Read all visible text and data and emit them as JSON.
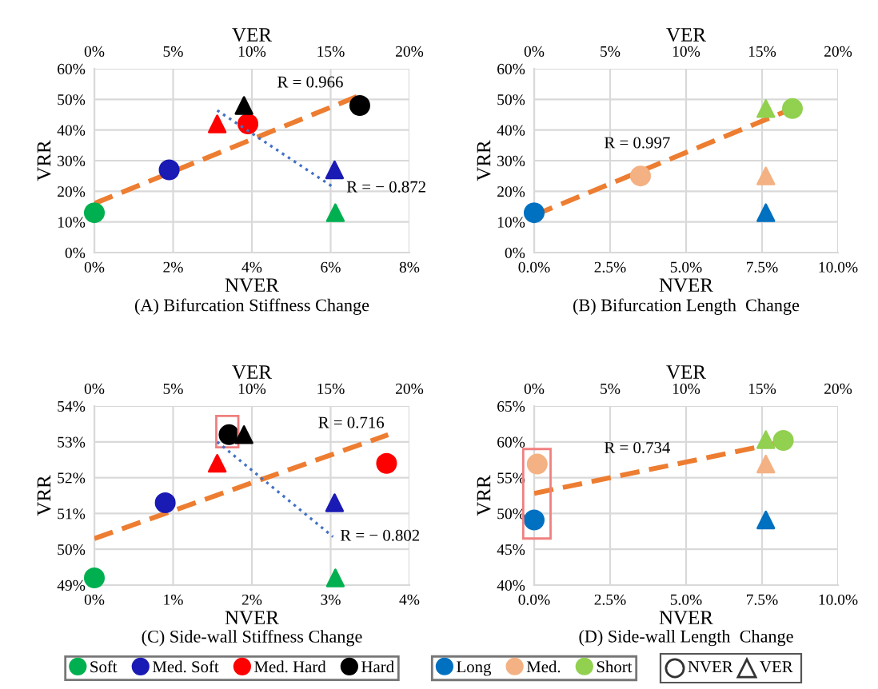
{
  "chart_data": [
    {
      "type": "scatter",
      "title": "(A) Bifurcation Stiffness Change",
      "xlabel": "NVER",
      "x2label": "VER",
      "ylabel": "VRR",
      "grid": true,
      "legend": false,
      "marker": "circle",
      "xlim": [
        0,
        8
      ],
      "xticks": [
        {
          "value": 0,
          "label": "0%"
        },
        {
          "value": 2,
          "label": "2%"
        },
        {
          "value": 4,
          "label": "4%"
        },
        {
          "value": 6,
          "label": "6%"
        },
        {
          "value": 8,
          "label": "8%"
        }
      ],
      "x2lim": [
        0,
        20
      ],
      "x2ticks": [
        {
          "value": 0,
          "label": "0%"
        },
        {
          "value": 5,
          "label": "5%"
        },
        {
          "value": 10,
          "label": "10%"
        },
        {
          "value": 15,
          "label": "15%"
        },
        {
          "value": 20,
          "label": "20%"
        }
      ],
      "ylim": [
        0,
        60
      ],
      "yticks": [
        {
          "value": 0,
          "label": "0%"
        },
        {
          "value": 10,
          "label": "10%"
        },
        {
          "value": 20,
          "label": "20%"
        },
        {
          "value": 30,
          "label": "30%"
        },
        {
          "value": 40,
          "label": "40%"
        },
        {
          "value": 50,
          "label": "50%"
        },
        {
          "value": 60,
          "label": "60%"
        }
      ],
      "series": [
        {
          "type": "line",
          "color": "#ed7d31",
          "line_style": "dashed",
          "marker": "none",
          "x": [
            0,
            6.74
          ],
          "values": [
            16,
            51.3
          ]
        },
        {
          "type": "line",
          "axis": "x2",
          "color": "#4472c4",
          "line_style": "dotted",
          "marker": "none",
          "x": [
            7.8,
            15.15
          ],
          "values": [
            46.4,
            21.4
          ]
        },
        {
          "color": "#00b050",
          "x": [
            0
          ],
          "values": [
            13
          ]
        },
        {
          "color": "#1a1ab4",
          "x": [
            1.9
          ],
          "values": [
            27
          ]
        },
        {
          "color": "#ff0000",
          "x": [
            3.9
          ],
          "values": [
            42
          ]
        },
        {
          "color": "#000000",
          "x": [
            6.74
          ],
          "values": [
            48
          ]
        },
        {
          "axis": "x2",
          "marker": "triangle",
          "color": "#00b050",
          "x": [
            15.3
          ],
          "values": [
            13
          ]
        },
        {
          "axis": "x2",
          "marker": "triangle",
          "color": "#1a1ab4",
          "x": [
            15.25
          ],
          "values": [
            27
          ]
        },
        {
          "axis": "x2",
          "marker": "triangle",
          "color": "#ff0000",
          "x": [
            7.8
          ],
          "values": [
            42
          ]
        },
        {
          "axis": "x2",
          "marker": "triangle",
          "color": "#000000",
          "x": [
            9.5
          ],
          "values": [
            48
          ]
        }
      ],
      "annotations": [
        "R = 0.966",
        "R = − 0.872"
      ]
    },
    {
      "type": "scatter",
      "title": "(B) Bifurcation Length  Change",
      "xlabel": "NVER",
      "x2label": "VER",
      "ylabel": "VRR",
      "grid": true,
      "legend": false,
      "marker": "circle",
      "xlim": [
        0,
        10
      ],
      "xticks": [
        {
          "value": 0,
          "label": "0.0%"
        },
        {
          "value": 2.5,
          "label": "2.5%"
        },
        {
          "value": 5,
          "label": "5.0%"
        },
        {
          "value": 7.5,
          "label": "7.5%"
        },
        {
          "value": 10,
          "label": "10.0%"
        }
      ],
      "x2lim": [
        0,
        20
      ],
      "x2ticks": [
        {
          "value": 0,
          "label": "0%"
        },
        {
          "value": 5,
          "label": "5%"
        },
        {
          "value": 10,
          "label": "10%"
        },
        {
          "value": 15,
          "label": "15%"
        },
        {
          "value": 20,
          "label": "20%"
        }
      ],
      "ylim": [
        0,
        60
      ],
      "yticks": [
        {
          "value": 0,
          "label": "0%"
        },
        {
          "value": 10,
          "label": "10%"
        },
        {
          "value": 20,
          "label": "20%"
        },
        {
          "value": 30,
          "label": "30%"
        },
        {
          "value": 40,
          "label": "40%"
        },
        {
          "value": 50,
          "label": "50%"
        },
        {
          "value": 60,
          "label": "60%"
        }
      ],
      "series": [
        {
          "type": "line",
          "color": "#ed7d31",
          "line_style": "dashed",
          "marker": "none",
          "x": [
            0,
            8.5
          ],
          "values": [
            12.2,
            47
          ]
        },
        {
          "color": "#0070c0",
          "x": [
            0
          ],
          "values": [
            13
          ]
        },
        {
          "color": "#f4b183",
          "x": [
            3.5
          ],
          "values": [
            25
          ]
        },
        {
          "color": "#92d050",
          "x": [
            8.5
          ],
          "values": [
            47
          ]
        },
        {
          "axis": "x2",
          "marker": "triangle",
          "color": "#0070c0",
          "x": [
            15.25
          ],
          "values": [
            13
          ]
        },
        {
          "axis": "x2",
          "marker": "triangle",
          "color": "#f4b183",
          "x": [
            15.25
          ],
          "values": [
            25
          ]
        },
        {
          "axis": "x2",
          "marker": "triangle",
          "color": "#92d050",
          "x": [
            15.25
          ],
          "values": [
            47
          ]
        }
      ],
      "annotations": [
        "R = 0.997"
      ]
    },
    {
      "type": "scatter",
      "title": "(C) Side-wall Stiffness Change",
      "xlabel": "NVER",
      "x2label": "VER",
      "ylabel": "VRR",
      "grid": true,
      "legend": "bottom",
      "marker": "circle",
      "xlim": [
        0,
        4
      ],
      "xticks": [
        {
          "value": 0,
          "label": "0%"
        },
        {
          "value": 1,
          "label": "1%"
        },
        {
          "value": 2,
          "label": "2%"
        },
        {
          "value": 3,
          "label": "3%"
        },
        {
          "value": 4,
          "label": "4%"
        }
      ],
      "x2lim": [
        0,
        20
      ],
      "x2ticks": [
        {
          "value": 0,
          "label": "0%"
        },
        {
          "value": 5,
          "label": "5%"
        },
        {
          "value": 10,
          "label": "10%"
        },
        {
          "value": 15,
          "label": "15%"
        },
        {
          "value": 20,
          "label": "20%"
        }
      ],
      "ylim": [
        49,
        54
      ],
      "yticks": [
        {
          "value": 49,
          "label": "49%"
        },
        {
          "value": 50,
          "label": "50%"
        },
        {
          "value": 51,
          "label": "51%"
        },
        {
          "value": 52,
          "label": "52%"
        },
        {
          "value": 53,
          "label": "53%"
        },
        {
          "value": 54,
          "label": "54%"
        }
      ],
      "series": [
        {
          "type": "line",
          "color": "#ed7d31",
          "line_style": "dashed",
          "marker": "none",
          "x": [
            0,
            3.73
          ],
          "values": [
            50.3,
            53.2
          ]
        },
        {
          "type": "line",
          "axis": "x2",
          "color": "#4472c4",
          "line_style": "dotted",
          "marker": "none",
          "x": [
            7.8,
            15.15
          ],
          "values": [
            53.0,
            50.35
          ]
        },
        {
          "name": "Soft",
          "color": "#00b050",
          "x": [
            0
          ],
          "values": [
            49.2
          ]
        },
        {
          "name": "Med. Soft",
          "color": "#1a1ab4",
          "x": [
            0.9
          ],
          "values": [
            51.3
          ]
        },
        {
          "name": "Med. Hard",
          "color": "#ff0000",
          "x": [
            3.71
          ],
          "values": [
            52.4
          ]
        },
        {
          "name": "Hard",
          "color": "#000000",
          "x": [
            1.71
          ],
          "values": [
            53.2
          ]
        },
        {
          "axis": "x2",
          "marker": "triangle",
          "color": "#00b050",
          "x": [
            15.3
          ],
          "values": [
            49.2
          ]
        },
        {
          "axis": "x2",
          "marker": "triangle",
          "color": "#1a1ab4",
          "x": [
            15.25
          ],
          "values": [
            51.3
          ]
        },
        {
          "axis": "x2",
          "marker": "triangle",
          "color": "#ff0000",
          "x": [
            7.8
          ],
          "values": [
            52.4
          ]
        },
        {
          "axis": "x2",
          "marker": "triangle",
          "color": "#000000",
          "x": [
            9.5
          ],
          "values": [
            53.2
          ]
        }
      ],
      "annotations": [
        "R = 0.716",
        "R = − 0.802"
      ]
    },
    {
      "type": "scatter",
      "title": "(D) Side-wall Length  Change",
      "xlabel": "NVER",
      "x2label": "VER",
      "ylabel": "VRR",
      "grid": true,
      "legend": "bottom",
      "marker": "circle",
      "xlim": [
        0,
        10
      ],
      "xticks": [
        {
          "value": 0,
          "label": "0.0%"
        },
        {
          "value": 2.5,
          "label": "2.5%"
        },
        {
          "value": 5,
          "label": "5.0%"
        },
        {
          "value": 7.5,
          "label": "7.5%"
        },
        {
          "value": 10,
          "label": "10.0%"
        }
      ],
      "x2lim": [
        0,
        20
      ],
      "x2ticks": [
        {
          "value": 0,
          "label": "0%"
        },
        {
          "value": 5,
          "label": "5%"
        },
        {
          "value": 10,
          "label": "10%"
        },
        {
          "value": 15,
          "label": "15%"
        },
        {
          "value": 20,
          "label": "20%"
        }
      ],
      "ylim": [
        40,
        65
      ],
      "yticks": [
        {
          "value": 40,
          "label": "40%"
        },
        {
          "value": 45,
          "label": "45%"
        },
        {
          "value": 50,
          "label": "50%"
        },
        {
          "value": 55,
          "label": "55%"
        },
        {
          "value": 60,
          "label": "60%"
        },
        {
          "value": 65,
          "label": "65%"
        }
      ],
      "series": [
        {
          "type": "line",
          "color": "#ed7d31",
          "line_style": "dashed",
          "marker": "none",
          "x": [
            0,
            8.2
          ],
          "values": [
            52.8,
            60
          ]
        },
        {
          "name": "Long",
          "color": "#0070c0",
          "x": [
            0
          ],
          "values": [
            49.1
          ]
        },
        {
          "name": "Med.",
          "color": "#f4b183",
          "x": [
            0.1
          ],
          "values": [
            56.9
          ]
        },
        {
          "name": "Short",
          "color": "#92d050",
          "x": [
            8.2
          ],
          "values": [
            60.2
          ]
        },
        {
          "axis": "x2",
          "marker": "triangle",
          "color": "#0070c0",
          "x": [
            15.25
          ],
          "values": [
            49.1
          ]
        },
        {
          "axis": "x2",
          "marker": "triangle",
          "color": "#f4b183",
          "x": [
            15.25
          ],
          "values": [
            56.9
          ]
        },
        {
          "axis": "x2",
          "marker": "triangle",
          "color": "#92d050",
          "x": [
            15.25
          ],
          "values": [
            60.3
          ]
        }
      ],
      "annotations": [
        "R = 0.734"
      ]
    },
    {
      "type": "other",
      "annotations": [
        "NVER",
        "VER"
      ]
    }
  ]
}
